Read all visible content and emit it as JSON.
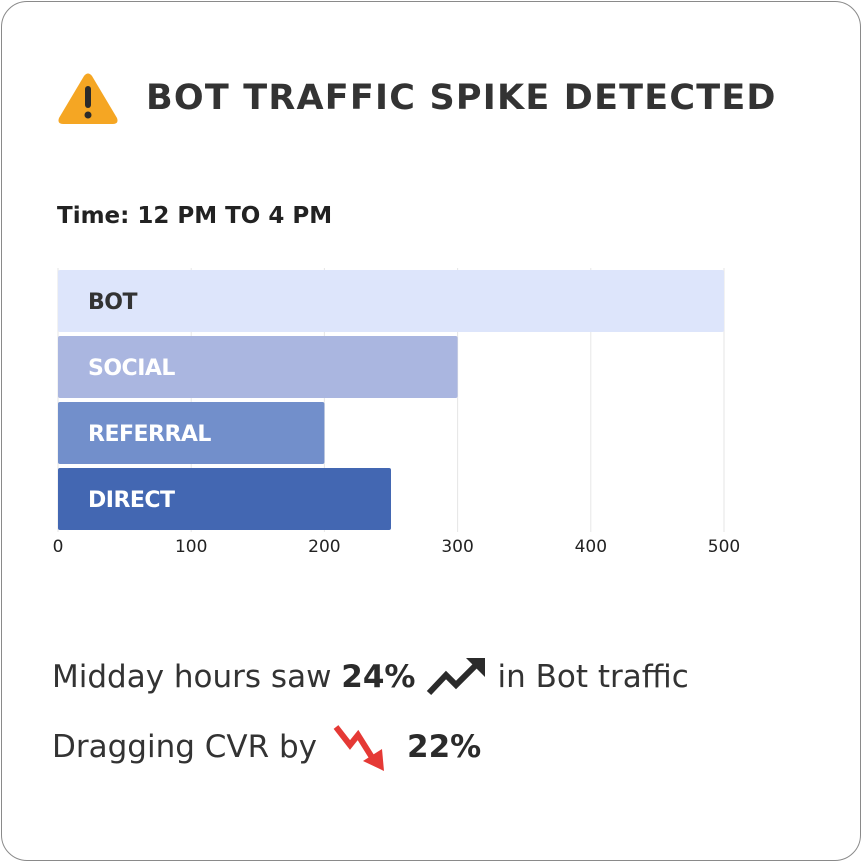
{
  "header": {
    "title": "BOT TRAFFIC SPIKE DETECTED",
    "icon": "warning-icon",
    "icon_color": "#F5A623"
  },
  "time_label": "Time: 12 PM TO 4 PM",
  "chart_data": {
    "type": "bar",
    "orientation": "horizontal",
    "categories": [
      "BOT",
      "SOCIAL",
      "REFERRAL",
      "DIRECT"
    ],
    "values": [
      500,
      300,
      200,
      250
    ],
    "colors": [
      "#DDE5FB",
      "#AAB6E0",
      "#728FCB",
      "#4367B2"
    ],
    "label_colors": [
      "#333333",
      "#FFFFFF",
      "#FFFFFF",
      "#FFFFFF"
    ],
    "xticks": [
      "0",
      "100",
      "200",
      "300",
      "400",
      "500"
    ],
    "xlim": [
      0,
      500
    ],
    "grid": true
  },
  "summary": {
    "line1_prefix": "Midday hours saw",
    "line1_value": "24%",
    "line1_suffix": "in Bot traffic",
    "line1_icon": "trend-up-icon",
    "line2_prefix": "Dragging CVR by",
    "line2_value": "22%",
    "line2_icon": "trend-down-icon",
    "line2_icon_color": "#E53935"
  }
}
